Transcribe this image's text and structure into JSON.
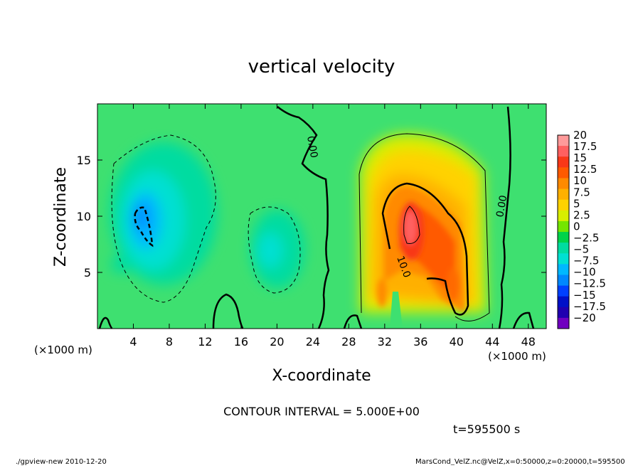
{
  "chart_data": {
    "type": "heatmap",
    "title": "vertical velocity",
    "xlabel": "X-coordinate",
    "ylabel": "Z-coordinate",
    "x_unit": "(×1000 m)",
    "y_unit": "(×1000 m)",
    "xlim": [
      0,
      50
    ],
    "ylim": [
      0,
      20
    ],
    "x_ticks": [
      "4",
      "8",
      "12",
      "16",
      "20",
      "24",
      "28",
      "32",
      "36",
      "40",
      "44",
      "48"
    ],
    "x_tick_values": [
      4,
      8,
      12,
      16,
      20,
      24,
      28,
      32,
      36,
      40,
      44,
      48
    ],
    "y_ticks": [
      "5",
      "10",
      "15"
    ],
    "y_tick_values": [
      5,
      10,
      15
    ],
    "colorbar": {
      "labels": [
        "20",
        "17.5",
        "15",
        "12.5",
        "10",
        "7.5",
        "5",
        "2.5",
        "0",
        "−2.5",
        "−5",
        "−7.5",
        "−10",
        "−12.5",
        "−15",
        "−17.5",
        "−20"
      ],
      "values": [
        20,
        17.5,
        15,
        12.5,
        10,
        7.5,
        5,
        2.5,
        0,
        -2.5,
        -5,
        -7.5,
        -10,
        -12.5,
        -15,
        -17.5,
        -20
      ],
      "colors": [
        "#ff9a9a",
        "#ff6060",
        "#f83818",
        "#ff5a00",
        "#ff8a00",
        "#ffb000",
        "#ffd200",
        "#d8ee00",
        "#74e600",
        "#00d34a",
        "#00dca0",
        "#00e0d2",
        "#00b8ff",
        "#0088ff",
        "#0040ff",
        "#0010c8",
        "#2000b0",
        "#7000c0"
      ]
    },
    "contour_labels": [
      "0.00",
      "0.00",
      "10.0"
    ],
    "contour_interval": "CONTOUR INTERVAL = 5.000E+00",
    "time": "t=595500 s",
    "background_color": "#3ee070"
  },
  "footer": {
    "left": "./gpview-new  2010-12-20",
    "right": "MarsCond_VelZ.nc@VelZ,x=0:50000,z=0:20000,t=595500"
  }
}
